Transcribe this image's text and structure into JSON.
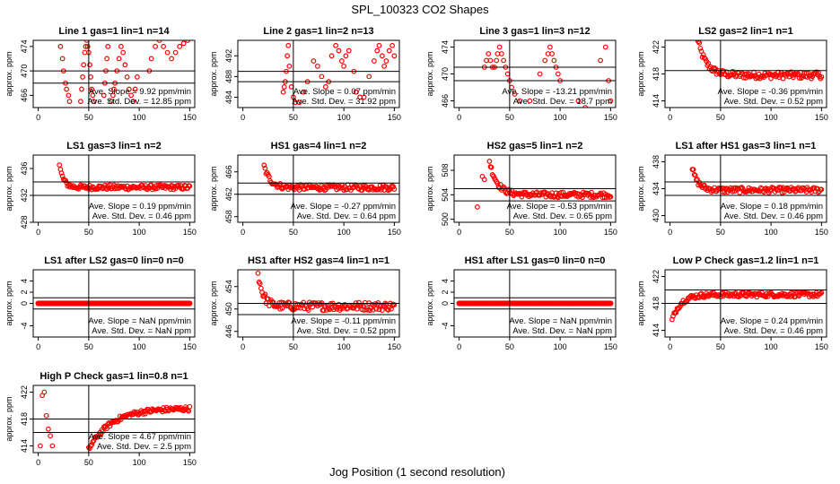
{
  "figure": {
    "title": "SPL_100323  CO2 Shapes",
    "xlabel": "Jog Position (1 second resolution)"
  },
  "chart_data": [
    {
      "type": "scatter",
      "title": "Line 1 gas=1 lin=1 n=14",
      "ylabel": "approx. ppm",
      "ylim": [
        464,
        475
      ],
      "yticks": [
        "466",
        "470",
        "474"
      ],
      "xlim": [
        -5,
        155
      ],
      "xticks": [
        "0",
        "50",
        "100",
        "150"
      ],
      "hlines": [
        470,
        468
      ],
      "vline": 50,
      "pattern": "wild",
      "slope_text": "Ave. Slope = 9.92 ppm/min",
      "std_text": "Ave. Std. Dev. = 12.85 ppm",
      "flat": null,
      "x": [
        22,
        24,
        25,
        27,
        28,
        30,
        31,
        42,
        43,
        44,
        45,
        46,
        47,
        48,
        49,
        50,
        51,
        52,
        53,
        54,
        55,
        65,
        66,
        67,
        68,
        69,
        72,
        74,
        75,
        76,
        78,
        80,
        82,
        84,
        86,
        88,
        90,
        92,
        94,
        96,
        98,
        110,
        112,
        116,
        120,
        124,
        128,
        132,
        136,
        140,
        144,
        148
      ],
      "y": [
        474,
        472,
        470,
        468,
        467,
        466,
        465,
        465,
        467,
        469,
        471,
        473,
        474,
        475,
        474,
        473,
        471,
        469,
        467,
        466,
        465,
        466,
        468,
        470,
        472,
        474,
        465,
        466,
        467,
        468,
        470,
        472,
        474,
        473,
        471,
        469,
        467,
        466,
        465,
        467,
        469,
        470,
        472,
        474,
        475,
        474,
        473,
        472,
        473,
        474,
        474.5,
        475
      ]
    },
    {
      "type": "scatter",
      "title": "Line 2 gas=1 lin=2 n=13",
      "ylabel": "approx. ppm",
      "ylim": [
        482,
        495
      ],
      "yticks": [
        "484",
        "488",
        "492"
      ],
      "xlim": [
        -5,
        155
      ],
      "xticks": [
        "0",
        "50",
        "100",
        "150"
      ],
      "hlines": [
        489,
        487
      ],
      "vline": 50,
      "pattern": "wild",
      "slope_text": "Ave. Slope = 0.07 ppm/min",
      "std_text": "Ave. Std. Dev. = 31.92 ppm",
      "flat": null,
      "x": [
        40,
        41,
        42,
        43,
        44,
        45,
        46,
        48,
        50,
        52,
        56,
        60,
        64,
        70,
        74,
        78,
        82,
        85,
        88,
        92,
        95,
        98,
        100,
        102,
        105,
        110,
        112,
        116,
        120,
        125,
        130,
        133,
        135,
        138,
        140,
        142,
        145,
        148,
        150
      ],
      "y": [
        485,
        486,
        487,
        489,
        492,
        494,
        490,
        486,
        484,
        483,
        483,
        485,
        487,
        491,
        490,
        488,
        486,
        487,
        492,
        494,
        493,
        491,
        490,
        492,
        493,
        489,
        485,
        484,
        484,
        488,
        491,
        493,
        494,
        492,
        490,
        491,
        493,
        494,
        492
      ]
    },
    {
      "type": "scatter",
      "title": "Line 3 gas=1 lin=3 n=12",
      "ylabel": "approx. ppm",
      "ylim": [
        465,
        475
      ],
      "yticks": [
        "466",
        "470",
        "474"
      ],
      "xlim": [
        -5,
        155
      ],
      "xticks": [
        "0",
        "50",
        "100",
        "150"
      ],
      "hlines": [
        471,
        469
      ],
      "vline": 50,
      "pattern": "wild",
      "slope_text": "Ave. Slope = -13.21 ppm/min",
      "std_text": "Ave. Std. Dev. = 18.7 ppm",
      "flat": null,
      "x": [
        25,
        27,
        29,
        31,
        33,
        35,
        37,
        38,
        40,
        42,
        44,
        46,
        48,
        50,
        52,
        55,
        60,
        70,
        80,
        85,
        88,
        90,
        92,
        94,
        96,
        98,
        100,
        118,
        125,
        140,
        145,
        148,
        150
      ],
      "y": [
        471,
        472,
        473,
        472,
        471,
        471,
        472,
        473,
        474,
        473,
        472,
        471,
        470,
        469,
        468,
        467,
        466,
        466,
        470,
        472,
        473,
        474,
        473,
        472,
        471,
        470,
        469,
        466,
        465,
        472,
        474,
        469,
        466
      ]
    },
    {
      "type": "scatter",
      "title": "LS2 gas=2 lin=1 n=1",
      "ylabel": "approx. ppm",
      "ylim": [
        413,
        423
      ],
      "yticks": [
        "414",
        "418",
        "422"
      ],
      "xlim": [
        -5,
        155
      ],
      "xticks": [
        "0",
        "50",
        "100",
        "150"
      ],
      "hlines": [
        418.5
      ],
      "vline": 50,
      "pattern": "decay",
      "decay": {
        "start_x": 26,
        "start_y": 424,
        "end_y": 417.8,
        "rate": 0.12,
        "noise": 0.5
      },
      "slope_text": "Ave. Slope = -0.36 ppm/min",
      "std_text": "Ave. Std. Dev. = 0.52 ppm",
      "flat": null,
      "x": [],
      "y": []
    },
    {
      "type": "scatter",
      "title": "LS1 gas=3 lin=1 n=2",
      "ylabel": "approx. ppm",
      "ylim": [
        428,
        438
      ],
      "yticks": [
        "428",
        "432",
        "436"
      ],
      "xlim": [
        -5,
        155
      ],
      "xticks": [
        "0",
        "50",
        "100",
        "150"
      ],
      "hlines": [
        434,
        432
      ],
      "vline": 50,
      "pattern": "decay",
      "decay": {
        "start_x": 21,
        "start_y": 436.5,
        "end_y": 433.2,
        "rate": 0.25,
        "noise": 0.35
      },
      "slope_text": "Ave. Slope = 0.19 ppm/min",
      "std_text": "Ave. Std. Dev. = 0.46 ppm",
      "flat": null,
      "x": [],
      "y": []
    },
    {
      "type": "scatter",
      "title": "HS1 gas=4 lin=1 n=2",
      "ylabel": "approx. ppm",
      "ylim": [
        457,
        469
      ],
      "yticks": [
        "458",
        "462",
        "466"
      ],
      "xlim": [
        -5,
        155
      ],
      "xticks": [
        "0",
        "50",
        "100",
        "150"
      ],
      "hlines": [
        464,
        462
      ],
      "vline": 50,
      "pattern": "decay",
      "decay": {
        "start_x": 21,
        "start_y": 467,
        "end_y": 463.2,
        "rate": 0.16,
        "noise": 0.5
      },
      "slope_text": "Ave. Slope = -0.27 ppm/min",
      "std_text": "Ave. Std. Dev. = 0.64 ppm",
      "flat": null,
      "x": [],
      "y": []
    },
    {
      "type": "scatter",
      "title": "HS2 gas=5 lin=1 n=2",
      "ylabel": "approx. ppm",
      "ylim": [
        499.5,
        510.5
      ],
      "yticks": [
        "500",
        "504",
        "508"
      ],
      "xlim": [
        -5,
        155
      ],
      "xticks": [
        "0",
        "50",
        "100",
        "150"
      ],
      "hlines": [
        505,
        503
      ],
      "vline": 50,
      "pattern": "decay",
      "decay": {
        "start_x": 30,
        "start_y": 509.5,
        "end_y": 504,
        "rate": 0.13,
        "noise": 0.45
      },
      "slope_text": "Ave. Slope = -0.53 ppm/min",
      "std_text": "Ave. Std. Dev. = 0.65 ppm",
      "flat": null,
      "x": [
        18,
        23,
        25
      ],
      "y": [
        502,
        507,
        506.5
      ]
    },
    {
      "type": "scatter",
      "title": "LS1 after HS1 gas=3 lin=1 n=1",
      "ylabel": "approx. ppm",
      "ylim": [
        429,
        439
      ],
      "yticks": [
        "430",
        "434",
        "438"
      ],
      "xlim": [
        -5,
        155
      ],
      "xticks": [
        "0",
        "50",
        "100",
        "150"
      ],
      "hlines": [
        435,
        433
      ],
      "vline": 50,
      "pattern": "decay",
      "decay": {
        "start_x": 22,
        "start_y": 437,
        "end_y": 433.8,
        "rate": 0.18,
        "noise": 0.4
      },
      "slope_text": "Ave. Slope = 0.18 ppm/min",
      "std_text": "Ave. Std. Dev. = 0.46 ppm",
      "flat": null,
      "x": [],
      "y": []
    },
    {
      "type": "scatter",
      "title": "LS1 after LS2 gas=0 lin=0 n=0",
      "ylabel": "approx. ppm",
      "ylim": [
        -6,
        6
      ],
      "yticks": [
        "-4",
        "0",
        "2",
        "4"
      ],
      "xlim": [
        -5,
        155
      ],
      "xticks": [
        "0",
        "50",
        "100",
        "150"
      ],
      "hlines": [
        1,
        -1
      ],
      "vline": 50,
      "pattern": "flat",
      "flat": {
        "value": 0,
        "from": 0,
        "to": 150
      },
      "slope_text": "Ave. Slope = NaN ppm/min",
      "std_text": "Ave. Std. Dev. = NaN ppm",
      "x": [],
      "y": []
    },
    {
      "type": "scatter",
      "title": "HS1 after HS2 gas=4 lin=1 n=1",
      "ylabel": "approx. ppm",
      "ylim": [
        445,
        457
      ],
      "yticks": [
        "446",
        "450",
        "454"
      ],
      "xlim": [
        -5,
        155
      ],
      "xticks": [
        "0",
        "50",
        "100",
        "150"
      ],
      "hlines": [
        451,
        449
      ],
      "vline": 50,
      "pattern": "decay",
      "decay": {
        "start_x": 15,
        "start_y": 456.5,
        "end_y": 450.5,
        "rate": 0.2,
        "noise": 0.75
      },
      "slope_text": "Ave. Slope = -0.11 ppm/min",
      "std_text": "Ave. Std. Dev. = 0.52 ppm",
      "flat": null,
      "x": [],
      "y": []
    },
    {
      "type": "scatter",
      "title": "HS1 after LS1 gas=0 lin=0 n=0",
      "ylabel": "approx. ppm",
      "ylim": [
        -6,
        6
      ],
      "yticks": [
        "-4",
        "0",
        "2",
        "4"
      ],
      "xlim": [
        -5,
        155
      ],
      "xticks": [
        "0",
        "50",
        "100",
        "150"
      ],
      "hlines": [
        1,
        -1
      ],
      "vline": 50,
      "pattern": "flat",
      "flat": {
        "value": 0,
        "from": 0,
        "to": 150
      },
      "slope_text": "Ave. Slope = NaN ppm/min",
      "std_text": "Ave. Std. Dev. = NaN ppm",
      "x": [],
      "y": []
    },
    {
      "type": "scatter",
      "title": "Low P Check gas=1.2 lin=1 n=1",
      "ylabel": "approx. ppm",
      "ylim": [
        413,
        423
      ],
      "yticks": [
        "414",
        "418",
        "422"
      ],
      "xlim": [
        -5,
        155
      ],
      "xticks": [
        "0",
        "50",
        "100",
        "150"
      ],
      "hlines": [
        420,
        418
      ],
      "vline": 50,
      "pattern": "rise",
      "rise": {
        "start_x": 2,
        "start_y": 415.5,
        "end_y": 419.3,
        "rate": 0.12,
        "noise": 0.35
      },
      "slope_text": "Ave. Slope = 0.24 ppm/min",
      "std_text": "Ave. Std. Dev. = 0.46 ppm",
      "flat": null,
      "x": [],
      "y": []
    },
    {
      "type": "scatter",
      "title": "High P Check gas=1 lin=0.8 n=1",
      "ylabel": "approx. ppm",
      "ylim": [
        413,
        423
      ],
      "yticks": [
        "414",
        "418",
        "422"
      ],
      "xlim": [
        -5,
        155
      ],
      "xticks": [
        "0",
        "50",
        "100",
        "150"
      ],
      "hlines": [
        418,
        416
      ],
      "vline": 50,
      "pattern": "ramp",
      "ramp": {
        "start_x": 50,
        "start_y": 413.5,
        "end_y": 419.6,
        "rate": 0.045,
        "noise": 0.35
      },
      "slope_text": "Ave. Slope = 4.67 ppm/min",
      "std_text": "Ave. Std. Dev. = 2.5 ppm",
      "flat": null,
      "x": [
        2,
        4,
        6,
        8,
        10,
        12,
        14
      ],
      "y": [
        414,
        421.5,
        422,
        418.5,
        416.5,
        415.5,
        414
      ]
    }
  ]
}
